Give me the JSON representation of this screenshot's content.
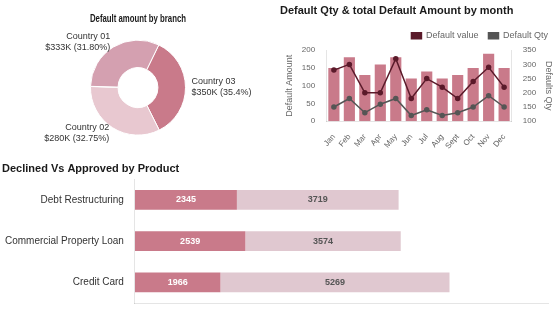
{
  "chart_data": [
    {
      "type": "doughnut",
      "title": "Default amount by branch",
      "categories": [
        "Country 03",
        "Country 02",
        null,
        "Country 01"
      ],
      "values": [
        35.4,
        32.75,
        0.05,
        31.8
      ],
      "value_labels": [
        "$350K (35.4%)",
        "$280K (32.75%)",
        null,
        "$333K (31.80%)"
      ],
      "colors": [
        "#c97a8a",
        "#e8c8d0",
        "#7a2a3a",
        "#d4a0b0"
      ],
      "data_labels": true
    },
    {
      "type": "bar",
      "title": "Default Qty & total Default Amount by month",
      "categories": [
        "Jan",
        "Feb",
        "Mar",
        "Apr",
        "May",
        "Jun",
        "Jul",
        "Aug",
        "Sept",
        "Oct",
        "Nov",
        "Dec"
      ],
      "ylabel": "Default Amount",
      "y2label": "Defaults Qty",
      "series": [
        {
          "type": "bar",
          "color": "#c97a8a",
          "values": [
            150,
            180,
            130,
            160,
            180,
            120,
            140,
            120,
            130,
            150,
            190,
            150
          ]
        },
        {
          "name": "Default value",
          "type": "line",
          "axis": "y2",
          "color": "#5a1a2a",
          "marker": "circle",
          "values": [
            280,
            300,
            200,
            200,
            320,
            180,
            250,
            220,
            180,
            240,
            290,
            220
          ]
        },
        {
          "name": "Default Qty",
          "type": "line",
          "axis": "y2",
          "color": "#555555",
          "marker": "circle",
          "values": [
            150,
            180,
            130,
            160,
            180,
            120,
            140,
            120,
            130,
            150,
            190,
            150
          ]
        }
      ],
      "ylim": [
        0,
        200
      ],
      "yticks": [
        0,
        50,
        100,
        150,
        200
      ],
      "y2lim": [
        100,
        350
      ],
      "y2ticks": [
        100,
        150,
        200,
        250,
        300,
        350
      ],
      "grid": false,
      "legend": "upper right"
    },
    {
      "type": "bar",
      "orientation": "horizontal",
      "stacked": true,
      "title": "Declined Vs Approved by Product",
      "categories": [
        "Debt Restructuring",
        "Commercial Property Loan",
        "Credit Card"
      ],
      "series": [
        {
          "color": "#c97a8a",
          "values": [
            2345,
            2539,
            1966
          ]
        },
        {
          "color": "#e0c8d0",
          "values": [
            3719,
            3574,
            5269
          ]
        }
      ],
      "xlim": [
        0,
        9500
      ],
      "tick_labels": "y",
      "data_labels": true,
      "grid": false
    }
  ]
}
